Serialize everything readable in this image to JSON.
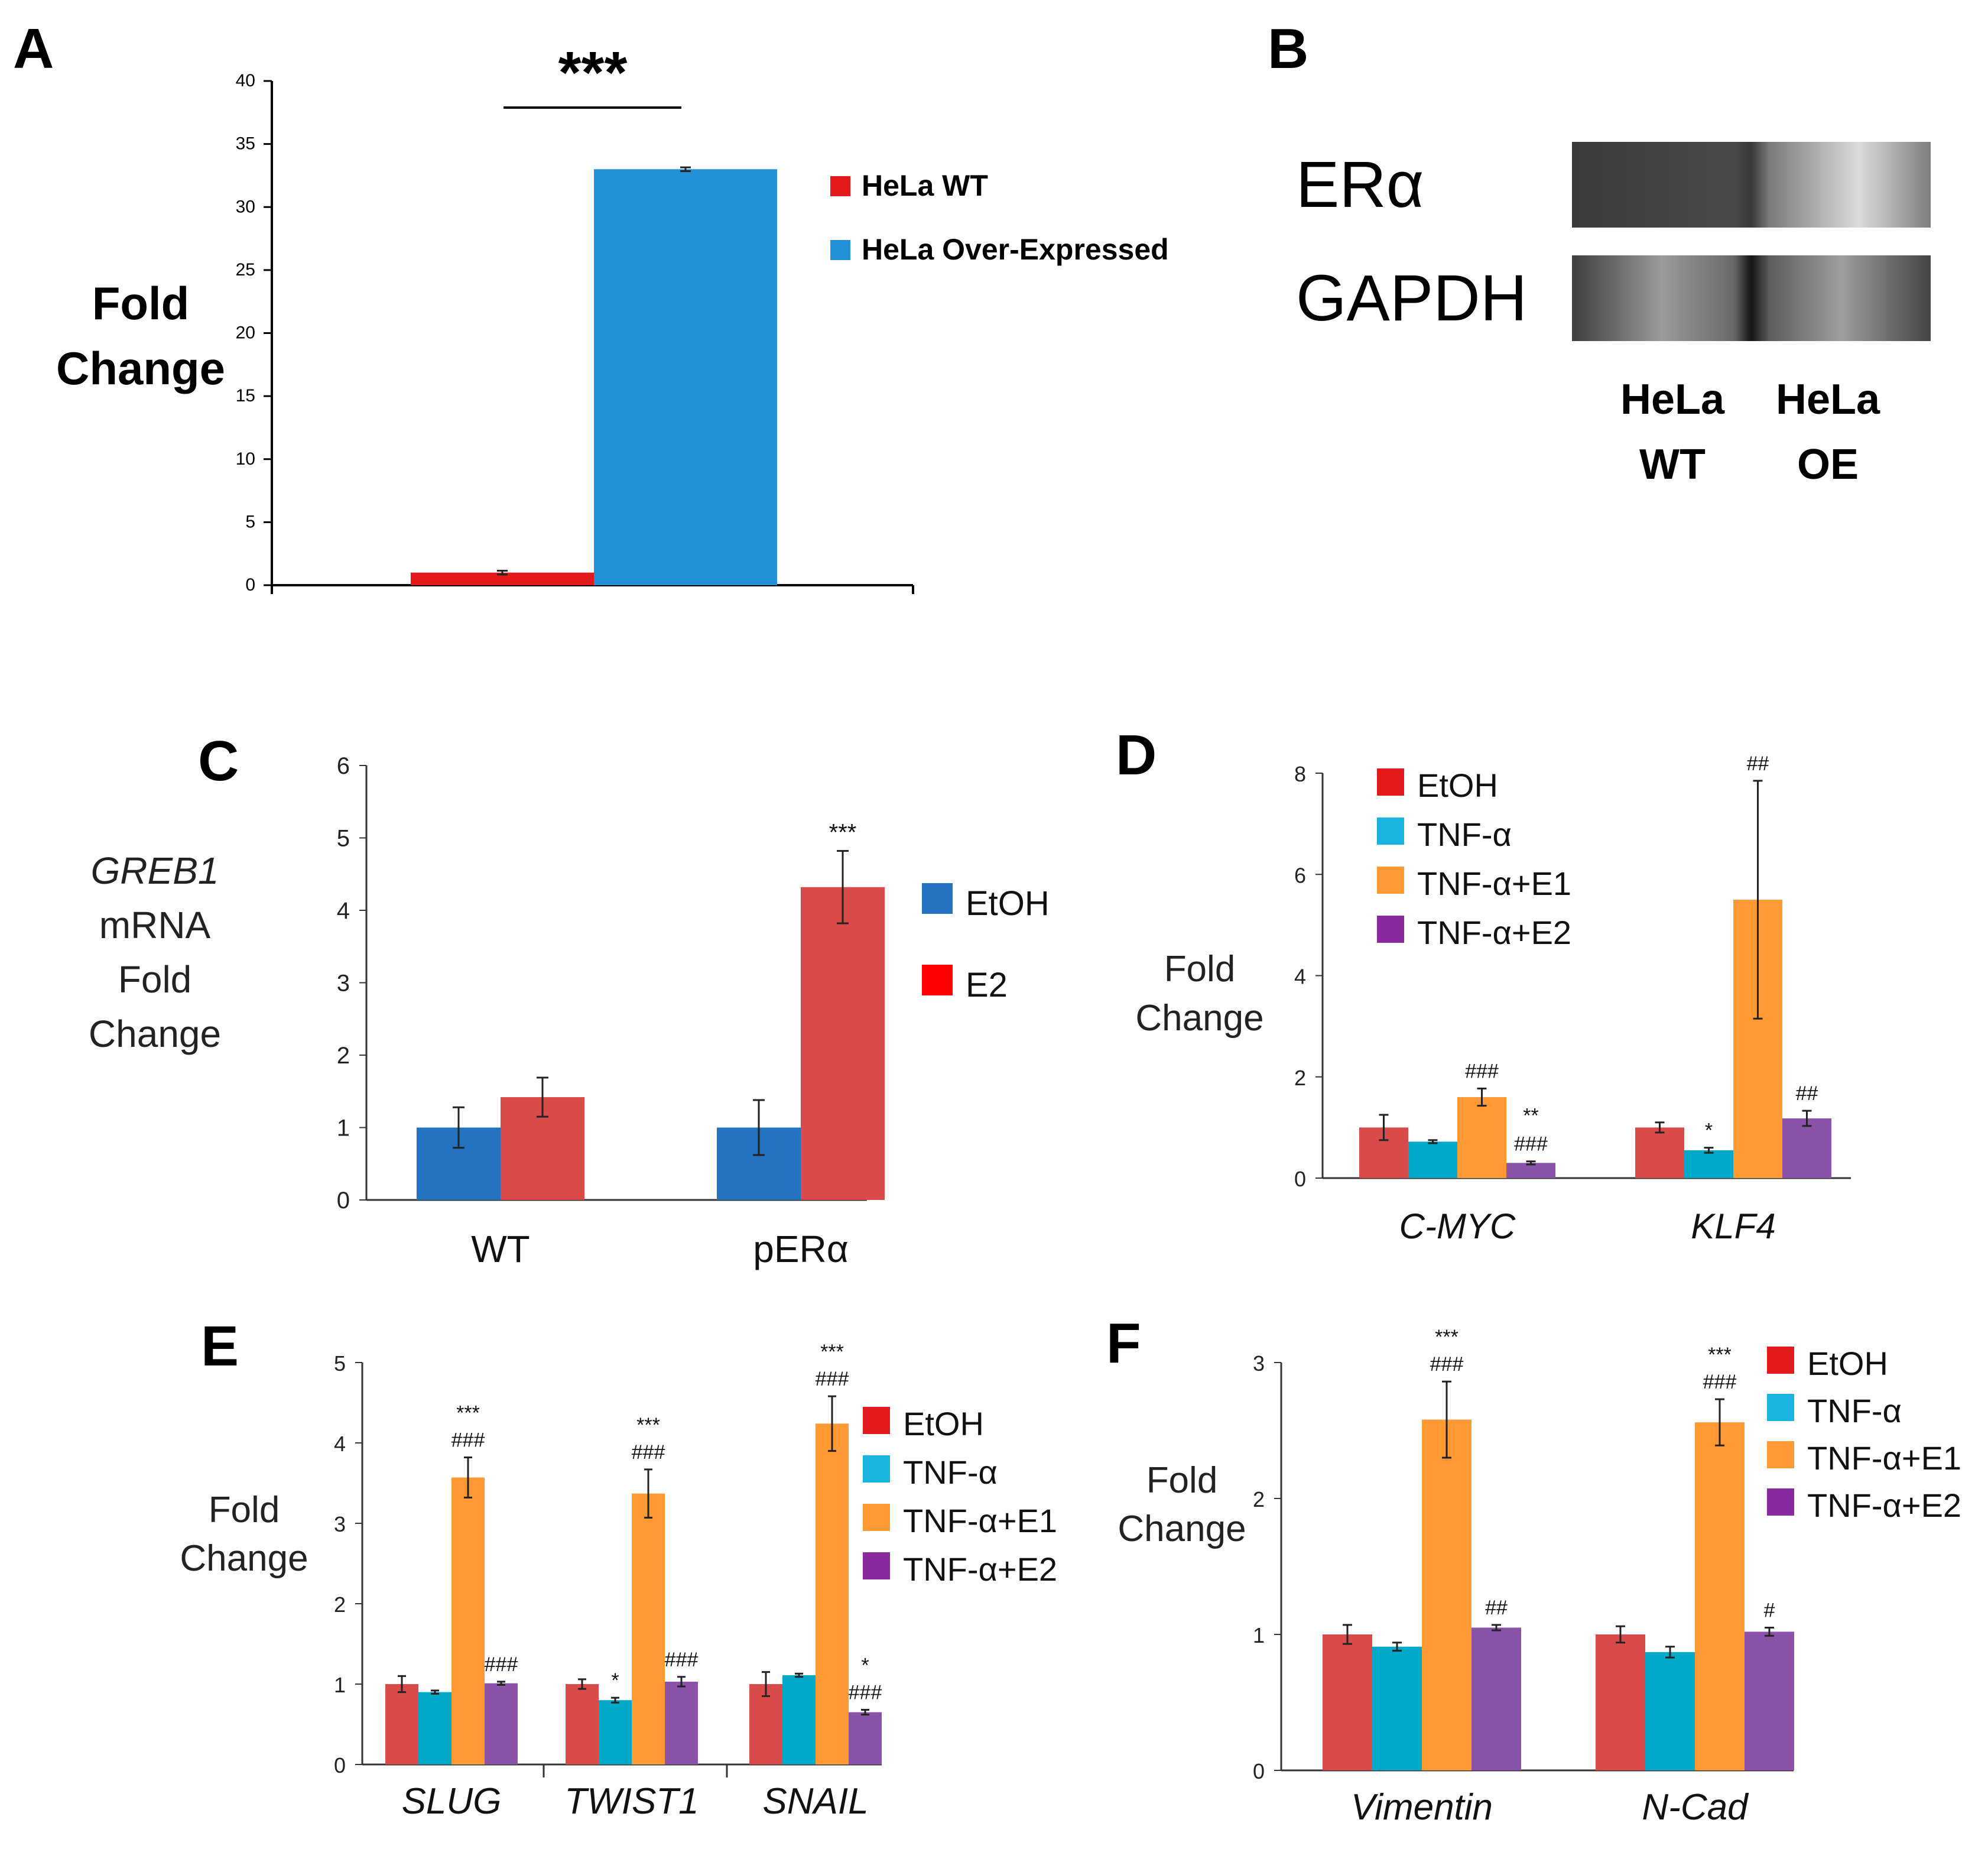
{
  "panels": {
    "A": {
      "letter": "A"
    },
    "B": {
      "letter": "B"
    },
    "C": {
      "letter": "C"
    },
    "D": {
      "letter": "D"
    },
    "E": {
      "letter": "E"
    },
    "F": {
      "letter": "F"
    }
  },
  "colors": {
    "wt_red": "#e31a1c",
    "oe_blue": "#2390d8",
    "etoh_blue": "#2373c1",
    "e2_red": "#ff0000",
    "bar_red": "#d94a4a",
    "etoh": "#e31a1c",
    "tnf": "#18b3df",
    "tnf_bar": "#00a9c8",
    "e1": "#ff9933",
    "e2": "#8a52a8",
    "e2_legend": "#8b2a9e"
  },
  "chart_data": [
    {
      "panel": "A",
      "type": "bar",
      "ylabel": "Fold Change",
      "ylim": [
        0,
        40
      ],
      "yticks": [
        "0",
        "5",
        "10",
        "15",
        "20",
        "25",
        "30",
        "35",
        "40"
      ],
      "series": [
        {
          "name": "HeLa WT",
          "values": [
            1.0
          ],
          "errors": [
            0.15
          ]
        },
        {
          "name": "HeLa Over-Expressed",
          "values": [
            33.0
          ],
          "errors": [
            0.15
          ]
        }
      ],
      "significance": "***",
      "legend": "right"
    },
    {
      "panel": "B",
      "type": "table",
      "rows": [
        "ERα",
        "GAPDH"
      ],
      "lanes": [
        {
          "line1": "HeLa",
          "line2": "WT"
        },
        {
          "line1": "HeLa",
          "line2": "OE"
        }
      ]
    },
    {
      "panel": "C",
      "type": "bar",
      "ylabel_lines": [
        "GREB1",
        "mRNA",
        "Fold",
        "Change"
      ],
      "categories": [
        "WT",
        "pERα"
      ],
      "ylim": [
        0,
        6
      ],
      "yticks": [
        "0",
        "1",
        "2",
        "3",
        "4",
        "5",
        "6"
      ],
      "series": [
        {
          "name": "EtOH",
          "values": [
            1.0,
            1.0
          ],
          "errors": [
            0.28,
            0.38
          ]
        },
        {
          "name": "E2",
          "values": [
            1.42,
            4.32
          ],
          "errors": [
            0.27,
            0.5
          ]
        }
      ],
      "annotations": [
        {
          "category": "pERα",
          "series": "E2",
          "text": "***"
        }
      ],
      "legend": "right"
    },
    {
      "panel": "D",
      "type": "bar",
      "ylabel_lines": [
        "Fold",
        "Change"
      ],
      "categories": [
        "C-MYC",
        "KLF4"
      ],
      "ylim": [
        0,
        8
      ],
      "yticks": [
        "0",
        "2",
        "4",
        "6",
        "8"
      ],
      "series": [
        {
          "name": "EtOH",
          "values": [
            1.0,
            1.0
          ],
          "errors": [
            0.25,
            0.1
          ]
        },
        {
          "name": "TNF-α",
          "values": [
            0.72,
            0.55
          ],
          "errors": [
            0.03,
            0.05
          ]
        },
        {
          "name": "TNF-α+E1",
          "values": [
            1.6,
            5.5
          ],
          "errors": [
            0.17,
            2.35
          ]
        },
        {
          "name": "TNF-α+E2",
          "values": [
            0.3,
            1.18
          ],
          "errors": [
            0.03,
            0.15
          ]
        }
      ],
      "annotations": [
        {
          "category": "C-MYC",
          "series": "TNF-α+E1",
          "lines": [
            "###"
          ]
        },
        {
          "category": "C-MYC",
          "series": "TNF-α+E2",
          "lines": [
            "**",
            "###"
          ]
        },
        {
          "category": "KLF4",
          "series": "TNF-α",
          "lines": [
            "*"
          ]
        },
        {
          "category": "KLF4",
          "series": "TNF-α+E1",
          "lines": [
            "##"
          ]
        },
        {
          "category": "KLF4",
          "series": "TNF-α+E2",
          "lines": [
            "##"
          ]
        }
      ],
      "legend": "top-left"
    },
    {
      "panel": "E",
      "type": "bar",
      "ylabel_lines": [
        "Fold",
        "Change"
      ],
      "categories": [
        "SLUG",
        "TWIST1",
        "SNAIL"
      ],
      "ylim": [
        0,
        5
      ],
      "yticks": [
        "0",
        "1",
        "2",
        "3",
        "4",
        "5"
      ],
      "series": [
        {
          "name": "EtOH",
          "values": [
            1.0,
            1.0,
            1.0
          ],
          "errors": [
            0.1,
            0.06,
            0.15
          ]
        },
        {
          "name": "TNF-α",
          "values": [
            0.9,
            0.8,
            1.11
          ],
          "errors": [
            0.02,
            0.03,
            0.02
          ]
        },
        {
          "name": "TNF-α+E1",
          "values": [
            3.57,
            3.37,
            4.24
          ],
          "errors": [
            0.25,
            0.3,
            0.34
          ]
        },
        {
          "name": "TNF-α+E2",
          "values": [
            1.01,
            1.03,
            0.65
          ],
          "errors": [
            0.02,
            0.06,
            0.03
          ]
        }
      ],
      "annotations": [
        {
          "category": "SLUG",
          "series": "TNF-α+E1",
          "lines": [
            "***",
            "###"
          ]
        },
        {
          "category": "SLUG",
          "series": "TNF-α+E2",
          "lines": [
            "###"
          ]
        },
        {
          "category": "TWIST1",
          "series": "TNF-α",
          "lines": [
            "*"
          ]
        },
        {
          "category": "TWIST1",
          "series": "TNF-α+E1",
          "lines": [
            "***",
            "###"
          ]
        },
        {
          "category": "TWIST1",
          "series": "TNF-α+E2",
          "lines": [
            "###"
          ]
        },
        {
          "category": "SNAIL",
          "series": "TNF-α+E1",
          "lines": [
            "***",
            "###"
          ]
        },
        {
          "category": "SNAIL",
          "series": "TNF-α+E2",
          "lines": [
            "*",
            "###"
          ]
        }
      ],
      "legend": "right"
    },
    {
      "panel": "F",
      "type": "bar",
      "ylabel_lines": [
        "Fold",
        "Change"
      ],
      "categories": [
        "Vimentin",
        "N-Cad"
      ],
      "ylim": [
        0,
        3
      ],
      "yticks": [
        "0",
        "1",
        "2",
        "3"
      ],
      "series": [
        {
          "name": "EtOH",
          "values": [
            1.0,
            1.0
          ],
          "errors": [
            0.07,
            0.06
          ]
        },
        {
          "name": "TNF-α",
          "values": [
            0.91,
            0.87
          ],
          "errors": [
            0.03,
            0.04
          ]
        },
        {
          "name": "TNF-α+E1",
          "values": [
            2.58,
            2.56
          ],
          "errors": [
            0.28,
            0.17
          ]
        },
        {
          "name": "TNF-α+E2",
          "values": [
            1.05,
            1.02
          ],
          "errors": [
            0.02,
            0.03
          ]
        }
      ],
      "annotations": [
        {
          "category": "Vimentin",
          "series": "TNF-α+E1",
          "lines": [
            "***",
            "###"
          ]
        },
        {
          "category": "Vimentin",
          "series": "TNF-α+E2",
          "lines": [
            "##"
          ]
        },
        {
          "category": "N-Cad",
          "series": "TNF-α+E1",
          "lines": [
            "***",
            "###"
          ]
        },
        {
          "category": "N-Cad",
          "series": "TNF-α+E2",
          "lines": [
            "#"
          ]
        }
      ],
      "legend": "top-right"
    }
  ]
}
